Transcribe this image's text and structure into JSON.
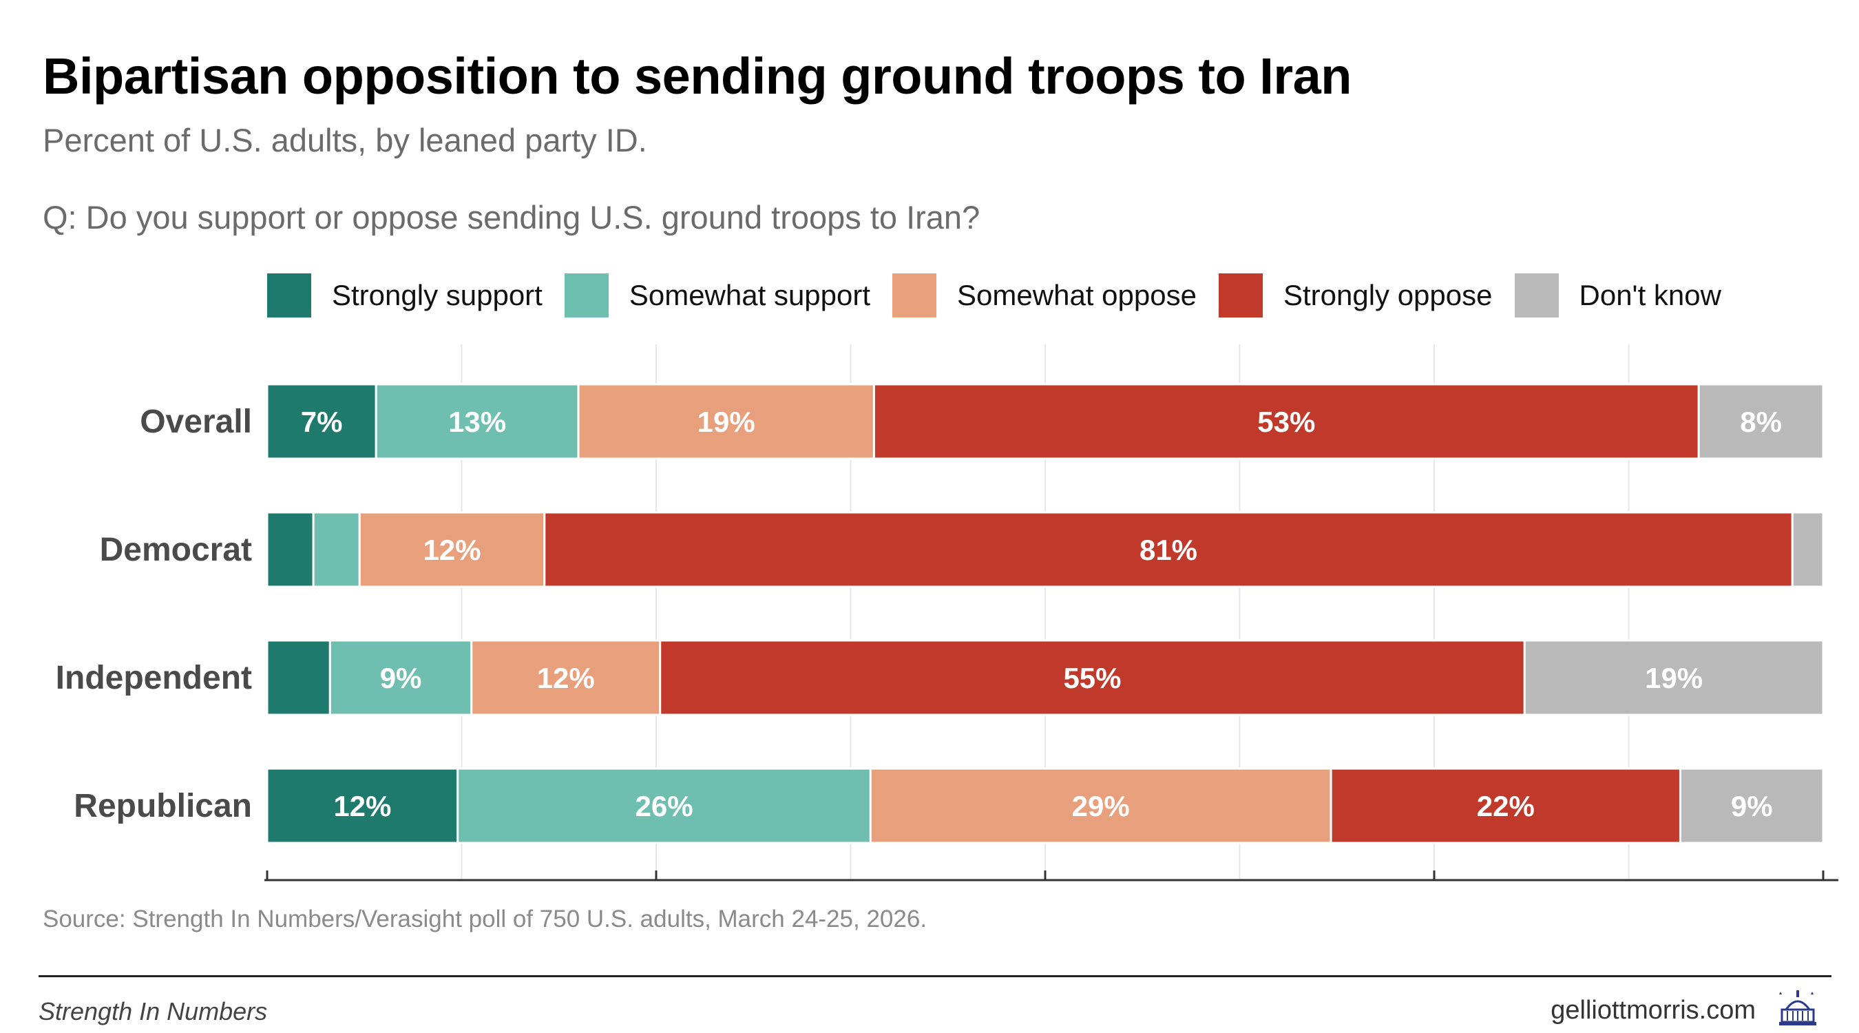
{
  "title": "Bipartisan opposition to sending ground troops to Iran",
  "subtitle": "Percent of U.S. adults, by leaned party ID.",
  "question": "Q: Do you support or oppose sending U.S. ground troops to Iran?",
  "source": "Source: Strength In Numbers/Verasight poll of 750 U.S. adults, March 24-25, 2026.",
  "footer": {
    "brand": "Strength In Numbers",
    "site": "gelliottmorris.com",
    "logo_icon": "capitol-building-icon"
  },
  "chart_data": {
    "type": "bar",
    "orientation": "horizontal",
    "stacked": true,
    "categories": [
      "Overall",
      "Democrat",
      "Independent",
      "Republican"
    ],
    "series": [
      {
        "name": "Strongly support",
        "color": "#1d7a6c",
        "values": [
          7,
          3,
          4,
          12
        ],
        "labels": [
          "7%",
          "",
          "",
          "12%"
        ]
      },
      {
        "name": "Somewhat support",
        "color": "#6fbfb0",
        "values": [
          13,
          3,
          9,
          26
        ],
        "labels": [
          "13%",
          "",
          "9%",
          "26%"
        ]
      },
      {
        "name": "Somewhat oppose",
        "color": "#e7a07b",
        "values": [
          19,
          12,
          12,
          29
        ],
        "labels": [
          "19%",
          "12%",
          "12%",
          "29%"
        ]
      },
      {
        "name": "Strongly oppose",
        "color": "#c0392b",
        "values": [
          53,
          81,
          55,
          22
        ],
        "labels": [
          "53%",
          "81%",
          "55%",
          "22%"
        ]
      },
      {
        "name": "Don't know",
        "color": "#b9b9b9",
        "values": [
          8,
          2,
          19,
          9
        ],
        "labels": [
          "8%",
          "",
          "19%",
          "9%"
        ]
      }
    ],
    "xlim": [
      0,
      100
    ],
    "grid": true,
    "legend": "top"
  }
}
